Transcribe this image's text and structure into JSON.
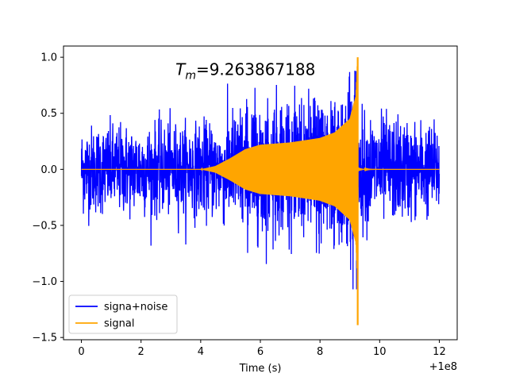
{
  "chart_data": {
    "type": "line",
    "title": "",
    "xlabel": "Time (s)",
    "ylabel": "",
    "x_offset_label": "+1e8",
    "xlim": [
      -0.6,
      12.6
    ],
    "ylim": [
      -1.52,
      1.1
    ],
    "x_ticks": [
      0,
      2,
      4,
      6,
      8,
      10,
      12
    ],
    "x_tick_labels": [
      "0",
      "2",
      "4",
      "6",
      "8",
      "10",
      "12"
    ],
    "y_ticks": [
      -1.5,
      -1.0,
      -0.5,
      0.0,
      0.5,
      1.0
    ],
    "y_tick_labels": [
      "−1.5",
      "−1.0",
      "−0.5",
      "0.0",
      "0.5",
      "1.0"
    ],
    "grid": false,
    "legend_position": "lower-left",
    "annotation": {
      "label": "T",
      "subscript": "m",
      "value_text": "=9.263867188",
      "x": 5.5,
      "y": 0.84
    },
    "series": [
      {
        "name": "signa+noise",
        "color": "#0000ff",
        "x_range": [
          0,
          12
        ],
        "noise_envelope": [
          [
            0,
            0.6
          ],
          [
            4,
            0.62
          ],
          [
            6,
            0.7
          ],
          [
            8,
            0.75
          ],
          [
            9.2,
            0.78
          ],
          [
            12,
            0.6
          ]
        ],
        "peak_max": 0.88,
        "peak_min": -1.07
      },
      {
        "name": "signal",
        "color": "#ffa500",
        "x_range": [
          0,
          12
        ],
        "merger_time": 9.263867188,
        "envelope": [
          [
            0,
            0
          ],
          [
            4,
            0.0
          ],
          [
            4.5,
            0.03
          ],
          [
            5,
            0.1
          ],
          [
            5.5,
            0.18
          ],
          [
            6,
            0.22
          ],
          [
            6.5,
            0.23
          ],
          [
            7,
            0.24
          ],
          [
            7.5,
            0.26
          ],
          [
            8,
            0.28
          ],
          [
            8.5,
            0.33
          ],
          [
            9,
            0.45
          ],
          [
            9.2,
            0.65
          ],
          [
            9.26,
            1.0
          ]
        ],
        "peak_max": 1.0,
        "peak_min": -1.39
      }
    ]
  }
}
